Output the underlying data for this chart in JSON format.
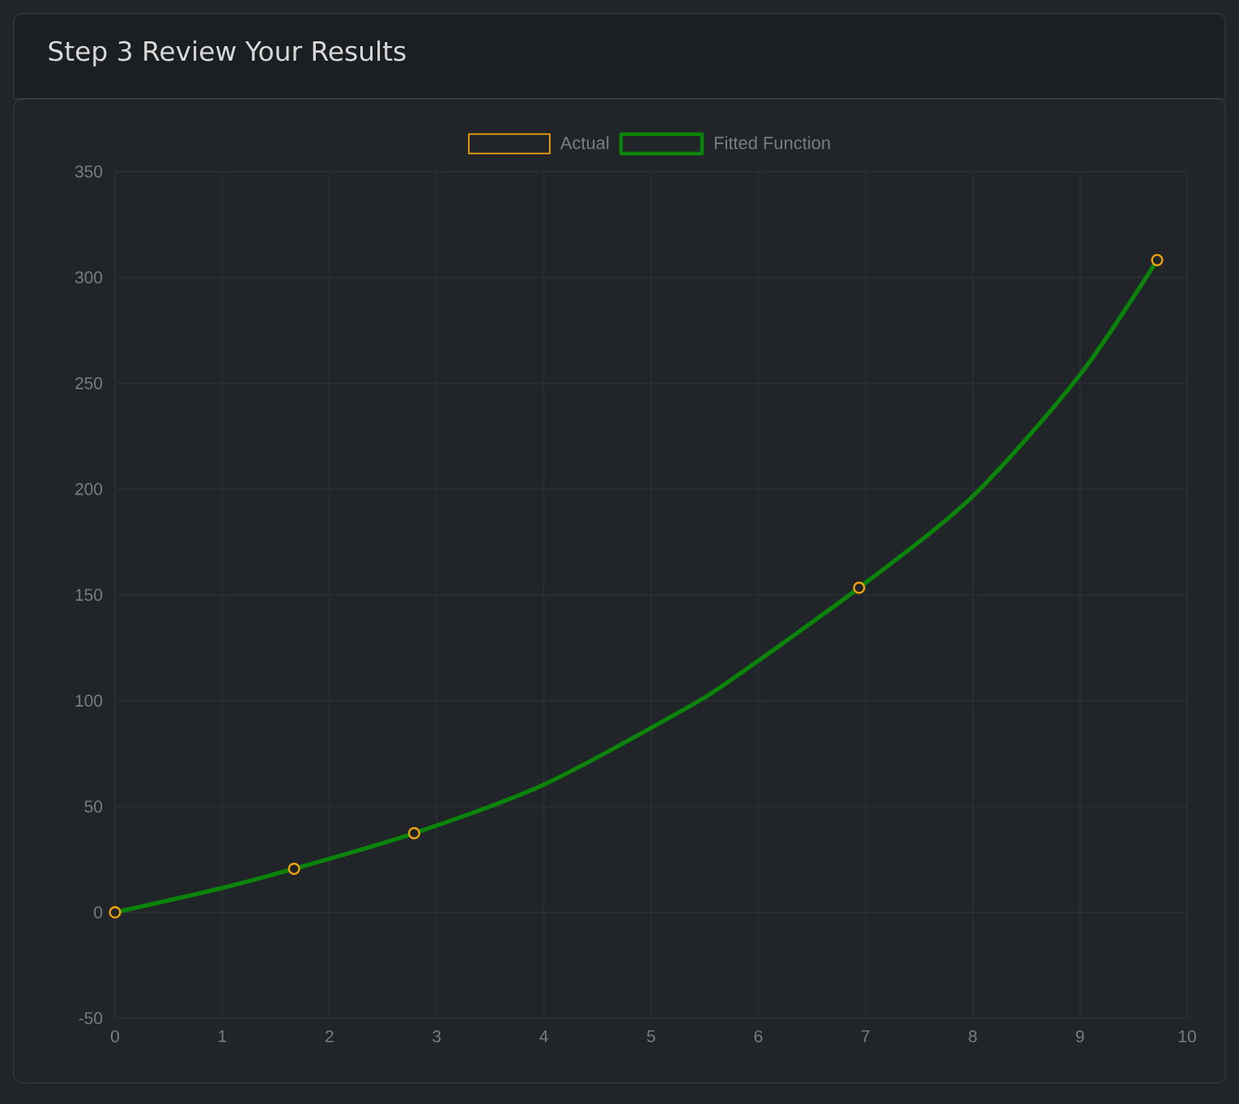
{
  "chart_data": {
    "type": "scatter",
    "title": "Step 3 Review Your Results",
    "xlim": [
      0,
      10
    ],
    "ylim": [
      -50,
      350
    ],
    "xticks": [
      0,
      1,
      2,
      3,
      4,
      5,
      6,
      7,
      8,
      9,
      10
    ],
    "yticks": [
      -50,
      0,
      50,
      100,
      150,
      200,
      250,
      300,
      350
    ],
    "grid": true,
    "legend": "top",
    "series": [
      {
        "name": "Actual",
        "type": "scatter",
        "color": "#f0a30a",
        "marker": "circle",
        "x": [
          0,
          1.67,
          2.79,
          6.94,
          9.72
        ],
        "values": [
          0,
          20.6,
          37.4,
          153.4,
          308.2
        ]
      },
      {
        "name": "Fitted Function",
        "type": "line",
        "color": "#0a850a",
        "marker": "none",
        "line_style": "solid",
        "x": [
          0,
          1,
          1.67,
          2.79,
          4,
          5.27,
          5.75,
          6.94,
          8,
          9,
          9.72
        ],
        "values": [
          0,
          11.5,
          20.6,
          37.4,
          60.4,
          94.8,
          110,
          153.4,
          196.6,
          254,
          308.2
        ]
      }
    ]
  }
}
